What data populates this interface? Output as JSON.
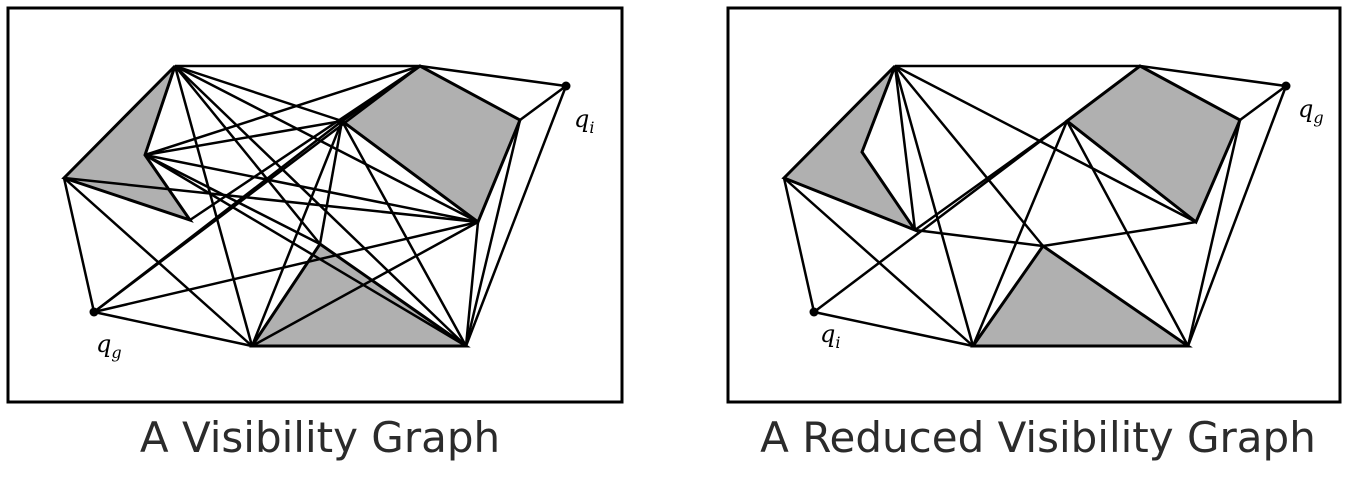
{
  "panels": [
    {
      "caption": "A Visibility Graph",
      "labels": {
        "top_right": "q",
        "top_right_sub": "i",
        "bottom_left": "q",
        "bottom_left_sub": "g"
      }
    },
    {
      "caption": "A Reduced Visibility Graph",
      "labels": {
        "top_right": "q",
        "top_right_sub": "g",
        "bottom_left": "q",
        "bottom_left_sub": "i"
      }
    }
  ],
  "colors": {
    "obstacle_fill": "#b0b0b0",
    "edge": "#000000",
    "frame": "#000000"
  }
}
